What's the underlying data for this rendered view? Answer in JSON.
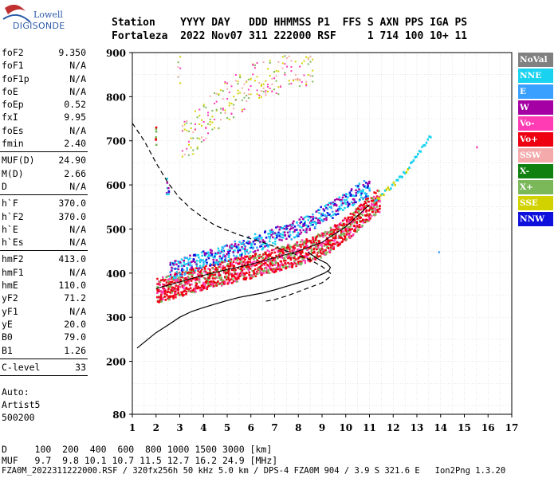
{
  "logo": {
    "line1": "Lowell",
    "line2": "DIGISONDE"
  },
  "header": {
    "line1": "Station    YYYY DAY   DDD HHMMSS P1  FFS S AXN PPS IGA PS",
    "line2": "Fortaleza  2022 Nov07 311 222000 RSF     1 714 100 10+ 11"
  },
  "params": [
    [
      {
        "k": "foF2",
        "v": "9.350"
      },
      {
        "k": "foF1",
        "v": "N/A"
      },
      {
        "k": "foF1p",
        "v": "N/A"
      },
      {
        "k": "foE",
        "v": "N/A"
      },
      {
        "k": "foEp",
        "v": "0.52"
      },
      {
        "k": "fxI",
        "v": "9.95"
      },
      {
        "k": "foEs",
        "v": "N/A"
      },
      {
        "k": "fmin",
        "v": "2.40"
      }
    ],
    [
      {
        "k": "MUF(D)",
        "v": "24.90"
      },
      {
        "k": "M(D)",
        "v": "2.66"
      },
      {
        "k": "D",
        "v": "N/A"
      }
    ],
    [
      {
        "k": "h`F",
        "v": "370.0"
      },
      {
        "k": "h`F2",
        "v": "370.0"
      },
      {
        "k": "h`E",
        "v": "N/A"
      },
      {
        "k": "h`Es",
        "v": "N/A"
      }
    ],
    [
      {
        "k": "hmF2",
        "v": "413.0"
      },
      {
        "k": "hmF1",
        "v": "N/A"
      },
      {
        "k": "hmE",
        "v": "110.0"
      },
      {
        "k": "yF2",
        "v": "71.2"
      },
      {
        "k": "yF1",
        "v": "N/A"
      },
      {
        "k": "yE",
        "v": "20.0"
      },
      {
        "k": "B0",
        "v": "79.0"
      },
      {
        "k": "B1",
        "v": "1.26"
      }
    ],
    [
      {
        "k": "C-level",
        "v": "33"
      }
    ]
  ],
  "auto": {
    "l1": "Auto:",
    "l2": "Artist5",
    "l3": "500200"
  },
  "footer": {
    "d_row": "D     100  200  400  600  800 1000 1500 3000 [km]",
    "muf_row": "MUF   9.7  9.8 10.1 10.7 11.5 12.7 16.2 24.9 [MHz]",
    "info": "FZA0M_2022311222000.RSF / 320fx256h 50 kHz 5.0 km / DPS-4 FZA0M 904 / 3.9 S 321.6 E   Ion2Png 1.3.20"
  },
  "legend": [
    {
      "label": "NoVal",
      "color": "#808080"
    },
    {
      "label": "NNE",
      "color": "#19d2f0"
    },
    {
      "label": "E",
      "color": "#3aa0ff"
    },
    {
      "label": "W",
      "color": "#a400a4"
    },
    {
      "label": "Vo-",
      "color": "#ff3cb4"
    },
    {
      "label": "Vo+",
      "color": "#ee0011"
    },
    {
      "label": "SSW",
      "color": "#f4aaaa"
    },
    {
      "label": "X-",
      "color": "#108010"
    },
    {
      "label": "X+",
      "color": "#7ab85a"
    },
    {
      "label": "SSE",
      "color": "#d2d200"
    },
    {
      "label": "NNW",
      "color": "#1010dd"
    }
  ],
  "chart_data": {
    "type": "scatter",
    "xlim": [
      1,
      17
    ],
    "ylim": [
      80,
      900
    ],
    "xticks": [
      "1",
      "2",
      "3",
      "4",
      "5",
      "6",
      "7",
      "8",
      "9",
      "10",
      "11",
      "12",
      "13",
      "14",
      "15",
      "16",
      "17"
    ],
    "yticks": [
      "80",
      "200",
      "300",
      "400",
      "500",
      "600",
      "700",
      "800",
      "900"
    ],
    "grid": true,
    "legend_position": "right",
    "profile": {
      "x": [
        1.2,
        2.0,
        2.5,
        3.0,
        3.5,
        4.0,
        4.5,
        5.0,
        5.5,
        6.0,
        6.5,
        7.0,
        7.5,
        8.0,
        8.5,
        8.8,
        9.1,
        9.3,
        9.35,
        9.2,
        8.9,
        8.6,
        8.4
      ],
      "y": [
        230,
        265,
        282,
        300,
        313,
        322,
        330,
        338,
        345,
        350,
        355,
        362,
        370,
        378,
        386,
        393,
        400,
        407,
        413,
        422,
        430,
        440,
        448
      ]
    },
    "bound_dashed": {
      "x": [
        1.0,
        1.5,
        2.0,
        2.5,
        3.0,
        3.5,
        4.0,
        4.5,
        5.0,
        5.5,
        6.0,
        6.5,
        7.0,
        7.5,
        8.0,
        8.5,
        9.0,
        9.35,
        9.3,
        9.0,
        8.5,
        8.0,
        7.5,
        7.0,
        6.5
      ],
      "y": [
        740,
        700,
        650,
        605,
        570,
        545,
        525,
        508,
        497,
        487,
        478,
        470,
        460,
        450,
        440,
        430,
        415,
        400,
        390,
        378,
        368,
        358,
        348,
        340,
        335
      ]
    },
    "main_trace": {
      "x": [
        2.0,
        3.0,
        4.0,
        5.0,
        6.0,
        7.0,
        8.0,
        9.0,
        10.0,
        11.0,
        11.5,
        12.0,
        12.5,
        13.0,
        13.5
      ],
      "y": [
        365,
        380,
        395,
        408,
        420,
        435,
        450,
        470,
        505,
        555,
        575,
        600,
        630,
        665,
        710
      ]
    },
    "upper_cloud": {
      "x": [
        3.0,
        3.5,
        4.0,
        4.5,
        5.0,
        5.5,
        6.0,
        6.5,
        7.0,
        7.5,
        8.0,
        8.5
      ],
      "y": [
        710,
        740,
        770,
        795,
        815,
        835,
        850,
        862,
        874,
        884,
        892,
        898
      ]
    },
    "upper_band": {
      "x": [
        2.5,
        3.5,
        4.5,
        5.5,
        6.5,
        7.5,
        8.5,
        9.5,
        10.5,
        11.0
      ],
      "y": [
        405,
        425,
        440,
        460,
        478,
        495,
        520,
        550,
        585,
        600
      ]
    },
    "isolated": [
      {
        "x": 13.9,
        "y": 450,
        "series": "E"
      },
      {
        "x": 15.5,
        "y": 688,
        "series": "Vo-"
      }
    ]
  }
}
